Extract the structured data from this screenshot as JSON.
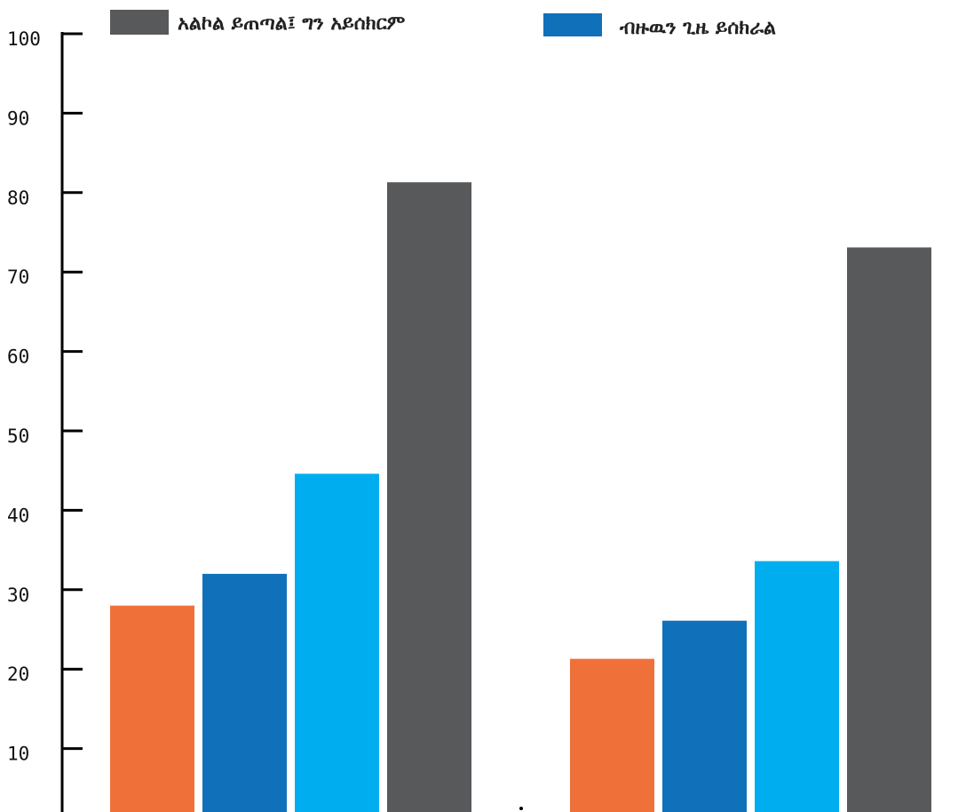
{
  "chart_data": {
    "type": "bar",
    "categories": [
      "",
      ""
    ],
    "series": [
      {
        "name": "",
        "color": "#F0703A",
        "values": [
          28,
          21.3
        ]
      },
      {
        "name": "ብዙዉን ጊዜ ይሰክራል",
        "color": "#1170BA",
        "values": [
          32,
          26.1
        ]
      },
      {
        "name": "",
        "color": "#00AEEF",
        "values": [
          44.6,
          33.6
        ]
      },
      {
        "name": "አልኮል ይጠጣል፤ ግን አይሰክርም",
        "color": "#58595B",
        "values": [
          81.3,
          73.1
        ]
      }
    ],
    "yticks": [
      "10",
      "20",
      "30",
      "40",
      "50",
      "60",
      "70",
      "80",
      "90",
      "100"
    ],
    "ylim": [
      0,
      100
    ],
    "grid": false,
    "legend_placement": "top",
    "title": "",
    "xlabel": "",
    "ylabel": ""
  }
}
